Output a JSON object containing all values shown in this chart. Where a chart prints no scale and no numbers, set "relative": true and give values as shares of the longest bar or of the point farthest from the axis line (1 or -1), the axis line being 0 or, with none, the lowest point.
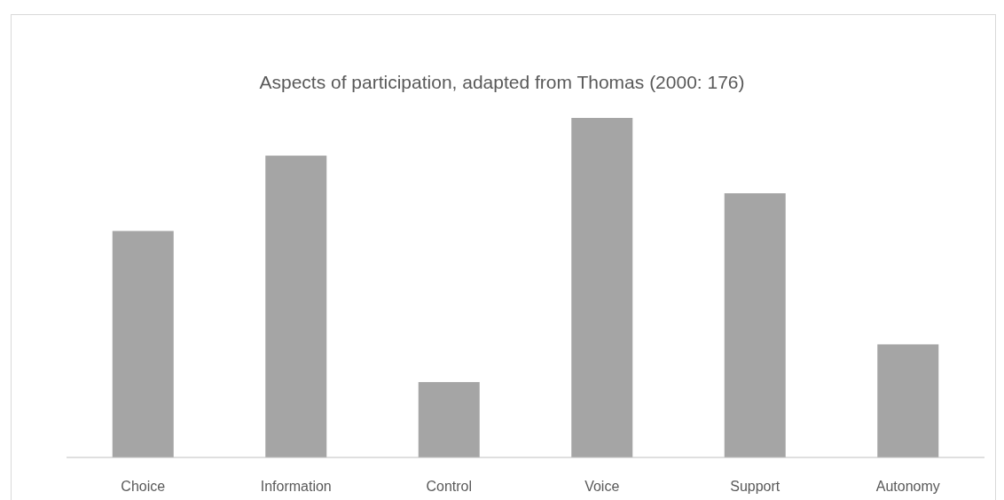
{
  "chart_data": {
    "type": "bar",
    "title": "Aspects of participation, adapted from Thomas (2000: 176)",
    "categories": [
      "Choice",
      "Information",
      "Control",
      "Voice",
      "Support",
      "Autonomy"
    ],
    "values": [
      0.667,
      0.889,
      0.222,
      1,
      0.778,
      0.333
    ],
    "color": "#a5a5a5",
    "relative": true
  }
}
